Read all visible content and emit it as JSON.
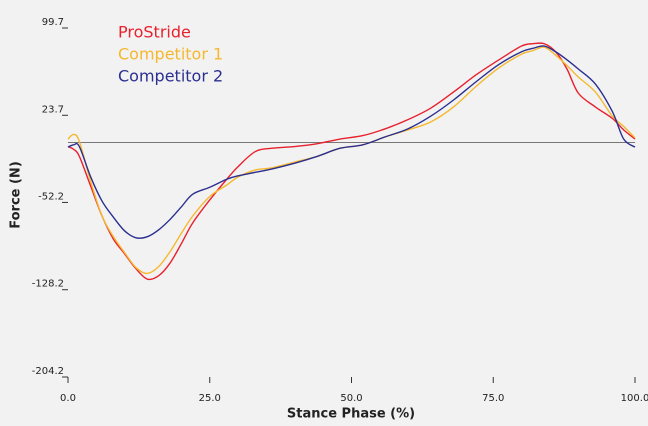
{
  "chart_data": {
    "type": "line",
    "xlabel": "Stance Phase (%)",
    "ylabel": "Force (N)",
    "xlim": [
      0,
      100
    ],
    "xticks": [
      {
        "value": 0,
        "label": "0.0"
      },
      {
        "value": 25,
        "label": "25.0"
      },
      {
        "value": 50,
        "label": "50.0"
      },
      {
        "value": 75,
        "label": "75.0"
      },
      {
        "value": 100,
        "label": "100.0"
      }
    ],
    "ylim": [
      -204.2,
      99.7
    ],
    "yticks": [
      99.7,
      23.7,
      -52.2,
      -128.2,
      -204.2
    ],
    "zero_line": true,
    "legend": "upper left",
    "x": [
      0,
      1,
      2,
      4,
      6,
      8,
      10,
      12,
      14,
      16,
      18,
      20,
      22,
      25,
      28,
      30,
      33,
      36,
      40,
      44,
      48,
      52,
      56,
      60,
      64,
      68,
      72,
      76,
      80,
      82,
      84,
      86,
      88,
      90,
      93,
      96,
      98,
      100
    ],
    "series": [
      {
        "name": "ProStride",
        "color": "#e8212e",
        "values": [
          -3.5,
          -6,
          -12,
          -38,
          -64,
          -84,
          -97,
          -110,
          -119,
          -116,
          -105,
          -88,
          -70,
          -50,
          -32,
          -21,
          -8,
          -5,
          -3.5,
          -1,
          3,
          6,
          12,
          20,
          30,
          44,
          59,
          72,
          84,
          86,
          86,
          79,
          64,
          43,
          31,
          21,
          11,
          3
        ]
      },
      {
        "name": "Competitor 1",
        "color": "#f5b82e",
        "values": [
          3,
          7,
          1,
          -34,
          -64,
          -82,
          -96,
          -109,
          -114,
          -108,
          -95,
          -79,
          -64,
          -47,
          -37,
          -30,
          -24,
          -22,
          -17,
          -12,
          -5,
          -2,
          5,
          11,
          18,
          31,
          49,
          65,
          77,
          80,
          83,
          76,
          67,
          57,
          44,
          23,
          14,
          4
        ]
      },
      {
        "name": "Competitor 2",
        "color": "#2b2f8f",
        "values": [
          -4,
          -2,
          -3.5,
          -30,
          -51,
          -65,
          -77,
          -83,
          -82,
          -76,
          -67,
          -56,
          -45,
          -39,
          -32,
          -29,
          -26,
          -23,
          -18,
          -12,
          -5,
          -2,
          5,
          12,
          23,
          37,
          53,
          68,
          79,
          82,
          84,
          79,
          72,
          64,
          51,
          27,
          3,
          -4
        ]
      }
    ]
  }
}
